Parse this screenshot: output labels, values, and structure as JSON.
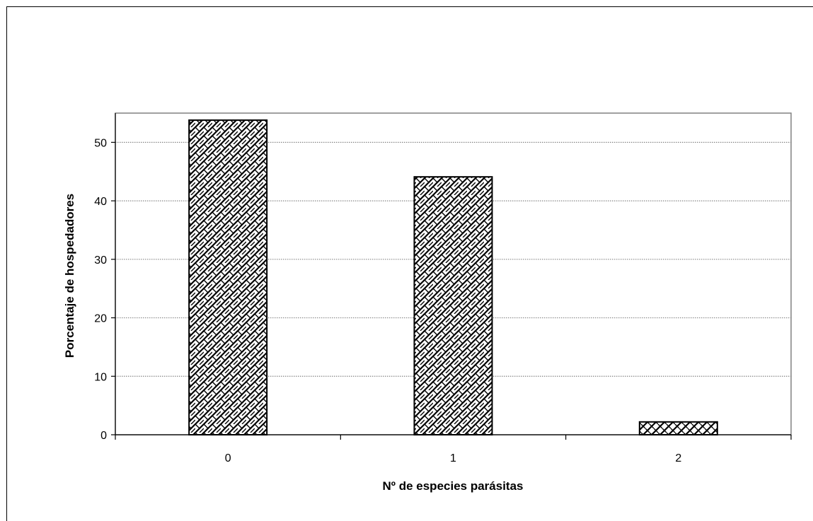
{
  "chart_data": {
    "type": "bar",
    "title": "",
    "xlabel": "Nº de especies parásitas",
    "ylabel": "Porcentaje de hospedadores",
    "categories": [
      "0",
      "1",
      "2"
    ],
    "values": [
      53.8,
      44.1,
      2.2
    ],
    "ylim": [
      0,
      55
    ],
    "yticks": [
      0,
      10,
      20,
      30,
      40,
      50
    ],
    "grid": true,
    "legend": "none",
    "colors": {
      "bar_fill_pattern": "#000000",
      "bar_background": "#ffffff",
      "gridline": "#888888",
      "axis": "#000000"
    }
  }
}
